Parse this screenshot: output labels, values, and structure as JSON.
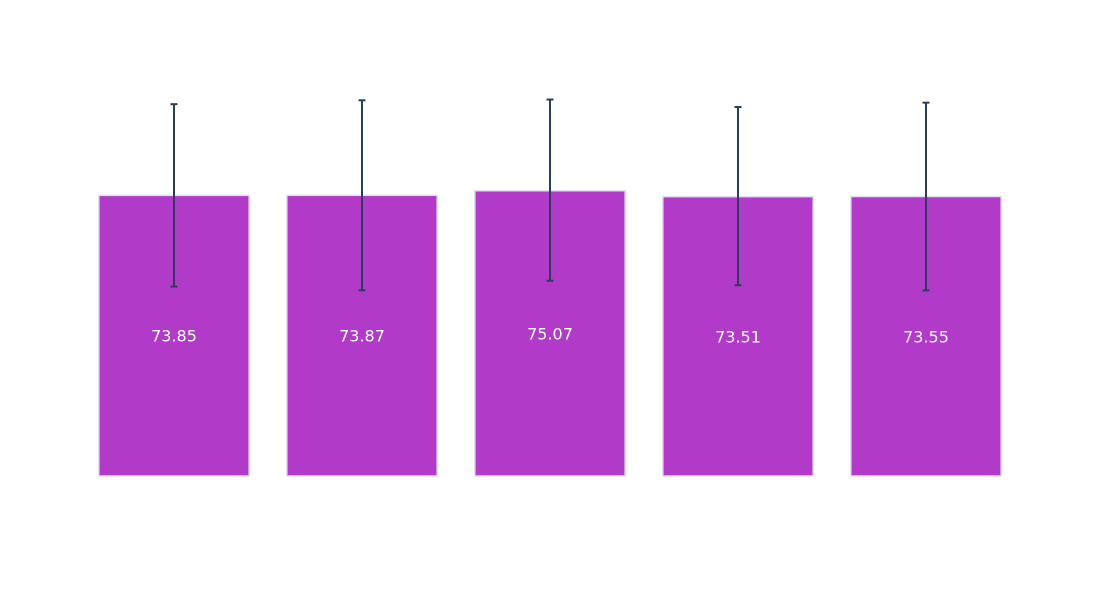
{
  "chart_data": {
    "type": "bar",
    "title": "",
    "xlabel": "",
    "ylabel": "",
    "categories": [
      "",
      "",
      "",
      "",
      ""
    ],
    "values": [
      73.85,
      73.87,
      75.07,
      73.51,
      73.55
    ],
    "value_labels": [
      "73.85",
      "73.87",
      "75.07",
      "73.51",
      "73.55"
    ],
    "error_upper": [
      24.0,
      25.0,
      24.0,
      23.6,
      24.7
    ],
    "error_lower": [
      24.0,
      25.0,
      23.7,
      23.3,
      24.7
    ],
    "ylim": [
      0,
      100
    ],
    "grid": false,
    "legend": "none",
    "colors": {
      "bar_fill": "#b13ac8",
      "bar_stroke": "#e3e0ee",
      "error_bar": "#2a3f5f"
    }
  }
}
